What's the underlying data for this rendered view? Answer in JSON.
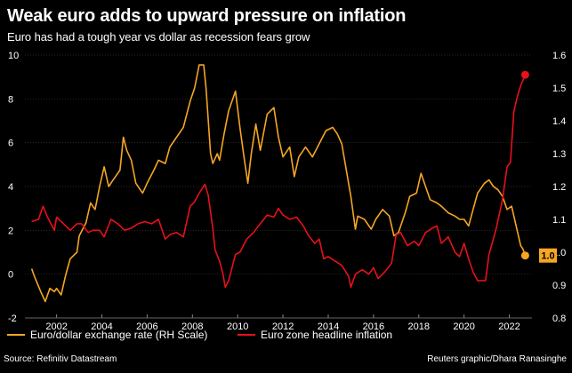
{
  "title": "Weak euro adds to upward pressure on inflation",
  "subtitle": "Euro has had a tough year vs dollar as recession fears grow",
  "source": "Source: Refinitiv Datastream",
  "credit": "Reuters graphic/Dhara Ranasinghe",
  "colors": {
    "eur": "#f5a623",
    "inflation": "#e8101a",
    "background": "#000000",
    "grid": "#3a3a3a"
  },
  "chart_data": {
    "type": "line",
    "title": "Weak euro adds to upward pressure on inflation",
    "subtitle": "Euro has had a tough year vs dollar as recession fears grow",
    "x_ticks": [
      "2002",
      "2004",
      "2006",
      "2008",
      "2010",
      "2012",
      "2014",
      "2016",
      "2018",
      "2020",
      "2022"
    ],
    "x_range": [
      2000.6,
      2023.0
    ],
    "y_left": {
      "range": [
        -2,
        10
      ],
      "ticks": [
        "-2",
        "0",
        "2",
        "4",
        "6",
        "8",
        "10"
      ]
    },
    "y_right": {
      "range": [
        0.8,
        1.6
      ],
      "ticks": [
        "0.8",
        "0.9",
        "1.0",
        "1.1",
        "1.2",
        "1.3",
        "1.4",
        "1.5",
        "1.6"
      ]
    },
    "end_labels": {
      "eur": "1.0"
    },
    "series": [
      {
        "name": "Euro/dollar exchange rate (RH Scale)",
        "axis": "right",
        "color": "#f5a623",
        "points": [
          [
            2000.9,
            0.95
          ],
          [
            2001.0,
            0.93
          ],
          [
            2001.3,
            0.88
          ],
          [
            2001.5,
            0.85
          ],
          [
            2001.7,
            0.89
          ],
          [
            2001.9,
            0.88
          ],
          [
            2002.0,
            0.89
          ],
          [
            2002.2,
            0.87
          ],
          [
            2002.4,
            0.93
          ],
          [
            2002.6,
            0.98
          ],
          [
            2002.9,
            1.0
          ],
          [
            2003.0,
            1.05
          ],
          [
            2003.3,
            1.09
          ],
          [
            2003.5,
            1.15
          ],
          [
            2003.7,
            1.13
          ],
          [
            2003.9,
            1.2
          ],
          [
            2004.1,
            1.26
          ],
          [
            2004.3,
            1.2
          ],
          [
            2004.5,
            1.22
          ],
          [
            2004.8,
            1.25
          ],
          [
            2004.95,
            1.35
          ],
          [
            2005.1,
            1.31
          ],
          [
            2005.3,
            1.28
          ],
          [
            2005.5,
            1.21
          ],
          [
            2005.8,
            1.18
          ],
          [
            2006.0,
            1.21
          ],
          [
            2006.3,
            1.25
          ],
          [
            2006.5,
            1.28
          ],
          [
            2006.8,
            1.27
          ],
          [
            2007.0,
            1.32
          ],
          [
            2007.3,
            1.35
          ],
          [
            2007.6,
            1.38
          ],
          [
            2007.9,
            1.46
          ],
          [
            2008.1,
            1.5
          ],
          [
            2008.3,
            1.57
          ],
          [
            2008.5,
            1.57
          ],
          [
            2008.6,
            1.5
          ],
          [
            2008.8,
            1.3
          ],
          [
            2008.9,
            1.27
          ],
          [
            2009.1,
            1.3
          ],
          [
            2009.2,
            1.28
          ],
          [
            2009.4,
            1.36
          ],
          [
            2009.6,
            1.43
          ],
          [
            2009.9,
            1.49
          ],
          [
            2010.1,
            1.38
          ],
          [
            2010.3,
            1.28
          ],
          [
            2010.45,
            1.21
          ],
          [
            2010.6,
            1.3
          ],
          [
            2010.8,
            1.39
          ],
          [
            2011.0,
            1.31
          ],
          [
            2011.3,
            1.42
          ],
          [
            2011.6,
            1.44
          ],
          [
            2011.8,
            1.35
          ],
          [
            2012.0,
            1.29
          ],
          [
            2012.3,
            1.32
          ],
          [
            2012.5,
            1.23
          ],
          [
            2012.7,
            1.29
          ],
          [
            2013.0,
            1.32
          ],
          [
            2013.3,
            1.29
          ],
          [
            2013.6,
            1.33
          ],
          [
            2013.9,
            1.37
          ],
          [
            2014.2,
            1.38
          ],
          [
            2014.4,
            1.36
          ],
          [
            2014.6,
            1.33
          ],
          [
            2014.8,
            1.25
          ],
          [
            2015.0,
            1.17
          ],
          [
            2015.2,
            1.07
          ],
          [
            2015.3,
            1.11
          ],
          [
            2015.6,
            1.1
          ],
          [
            2015.9,
            1.07
          ],
          [
            2016.1,
            1.1
          ],
          [
            2016.4,
            1.13
          ],
          [
            2016.7,
            1.11
          ],
          [
            2016.9,
            1.05
          ],
          [
            2017.1,
            1.06
          ],
          [
            2017.4,
            1.12
          ],
          [
            2017.6,
            1.17
          ],
          [
            2017.9,
            1.18
          ],
          [
            2018.1,
            1.24
          ],
          [
            2018.3,
            1.2
          ],
          [
            2018.5,
            1.16
          ],
          [
            2018.8,
            1.15
          ],
          [
            2019.0,
            1.14
          ],
          [
            2019.3,
            1.12
          ],
          [
            2019.6,
            1.11
          ],
          [
            2019.8,
            1.1
          ],
          [
            2020.0,
            1.1
          ],
          [
            2020.2,
            1.08
          ],
          [
            2020.4,
            1.13
          ],
          [
            2020.6,
            1.18
          ],
          [
            2020.9,
            1.21
          ],
          [
            2021.1,
            1.22
          ],
          [
            2021.3,
            1.2
          ],
          [
            2021.5,
            1.19
          ],
          [
            2021.7,
            1.17
          ],
          [
            2021.9,
            1.13
          ],
          [
            2022.1,
            1.14
          ],
          [
            2022.3,
            1.08
          ],
          [
            2022.5,
            1.02
          ],
          [
            2022.6,
            1.01
          ],
          [
            2022.7,
            0.99
          ]
        ]
      },
      {
        "name": "Euro zone headline inflation",
        "axis": "left",
        "color": "#e8101a",
        "points": [
          [
            2000.9,
            2.4
          ],
          [
            2001.2,
            2.5
          ],
          [
            2001.4,
            3.1
          ],
          [
            2001.6,
            2.6
          ],
          [
            2001.9,
            2.0
          ],
          [
            2002.0,
            2.6
          ],
          [
            2002.3,
            2.3
          ],
          [
            2002.6,
            2.0
          ],
          [
            2002.9,
            2.3
          ],
          [
            2003.1,
            2.3
          ],
          [
            2003.4,
            1.9
          ],
          [
            2003.6,
            2.0
          ],
          [
            2003.9,
            2.0
          ],
          [
            2004.1,
            1.7
          ],
          [
            2004.4,
            2.5
          ],
          [
            2004.7,
            2.3
          ],
          [
            2005.0,
            2.0
          ],
          [
            2005.3,
            2.1
          ],
          [
            2005.6,
            2.3
          ],
          [
            2005.9,
            2.4
          ],
          [
            2006.2,
            2.3
          ],
          [
            2006.5,
            2.5
          ],
          [
            2006.8,
            1.6
          ],
          [
            2007.0,
            1.8
          ],
          [
            2007.3,
            1.9
          ],
          [
            2007.6,
            1.7
          ],
          [
            2007.9,
            3.1
          ],
          [
            2008.1,
            3.3
          ],
          [
            2008.3,
            3.7
          ],
          [
            2008.55,
            4.1
          ],
          [
            2008.7,
            3.6
          ],
          [
            2008.9,
            2.1
          ],
          [
            2009.0,
            1.1
          ],
          [
            2009.2,
            0.6
          ],
          [
            2009.35,
            0.0
          ],
          [
            2009.45,
            -0.6
          ],
          [
            2009.6,
            -0.3
          ],
          [
            2009.9,
            0.9
          ],
          [
            2010.1,
            1.0
          ],
          [
            2010.4,
            1.6
          ],
          [
            2010.7,
            1.9
          ],
          [
            2011.0,
            2.3
          ],
          [
            2011.3,
            2.7
          ],
          [
            2011.6,
            2.6
          ],
          [
            2011.8,
            3.0
          ],
          [
            2012.0,
            2.7
          ],
          [
            2012.3,
            2.5
          ],
          [
            2012.6,
            2.6
          ],
          [
            2012.9,
            2.2
          ],
          [
            2013.1,
            1.8
          ],
          [
            2013.4,
            1.4
          ],
          [
            2013.6,
            1.6
          ],
          [
            2013.8,
            0.7
          ],
          [
            2014.0,
            0.8
          ],
          [
            2014.3,
            0.6
          ],
          [
            2014.6,
            0.4
          ],
          [
            2014.9,
            -0.1
          ],
          [
            2015.0,
            -0.6
          ],
          [
            2015.2,
            0.0
          ],
          [
            2015.5,
            0.2
          ],
          [
            2015.8,
            0.0
          ],
          [
            2016.0,
            0.3
          ],
          [
            2016.2,
            -0.2
          ],
          [
            2016.5,
            0.1
          ],
          [
            2016.8,
            0.5
          ],
          [
            2017.0,
            1.8
          ],
          [
            2017.2,
            1.9
          ],
          [
            2017.5,
            1.3
          ],
          [
            2017.8,
            1.5
          ],
          [
            2018.0,
            1.3
          ],
          [
            2018.3,
            1.9
          ],
          [
            2018.6,
            2.1
          ],
          [
            2018.8,
            2.2
          ],
          [
            2019.0,
            1.4
          ],
          [
            2019.3,
            1.7
          ],
          [
            2019.6,
            1.0
          ],
          [
            2019.8,
            0.8
          ],
          [
            2020.0,
            1.4
          ],
          [
            2020.2,
            0.7
          ],
          [
            2020.4,
            0.1
          ],
          [
            2020.6,
            -0.3
          ],
          [
            2020.8,
            -0.3
          ],
          [
            2020.95,
            -0.3
          ],
          [
            2021.1,
            0.9
          ],
          [
            2021.4,
            2.0
          ],
          [
            2021.7,
            3.4
          ],
          [
            2021.9,
            4.9
          ],
          [
            2022.05,
            5.1
          ],
          [
            2022.2,
            7.4
          ],
          [
            2022.35,
            8.1
          ],
          [
            2022.5,
            8.6
          ],
          [
            2022.7,
            9.1
          ]
        ]
      }
    ]
  },
  "legend": {
    "eur_label": "Euro/dollar exchange rate (RH Scale)",
    "inflation_label": "Euro zone headline inflation"
  }
}
